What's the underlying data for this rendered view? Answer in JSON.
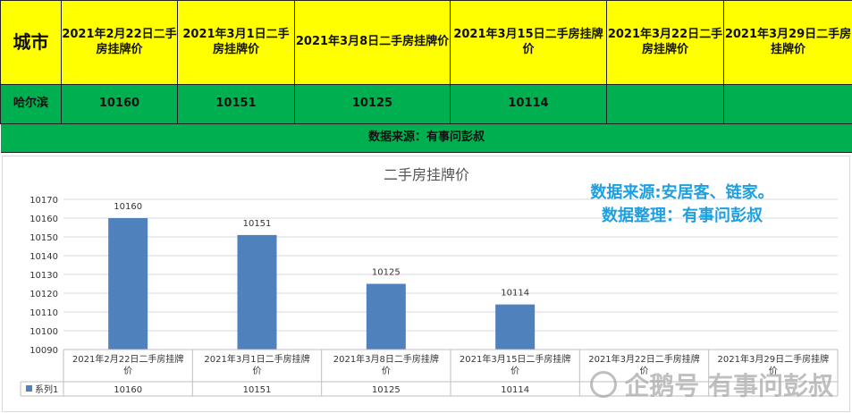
{
  "table": {
    "header_city": "城市",
    "dates": [
      "2021年2月22日二手房挂牌价",
      "2021年3月1日二手房挂牌价",
      "2021年3月8日二手房挂牌价",
      "2021年3月15日二手房挂牌价",
      "2021年3月22日二手房挂牌价",
      "2021年3月29日二手房挂牌价"
    ],
    "city": "哈尔滨",
    "values": [
      "10160",
      "10151",
      "10125",
      "10114",
      "",
      ""
    ],
    "source": "数据来源：有事问彭叔"
  },
  "watermark": {
    "line1": "数据来源:安居客、链家。",
    "line2": "数据整理：有事问彭叔",
    "footer": "企鹅号 有事问彭叔"
  },
  "colors": {
    "yellow": "#ffff00",
    "green": "#00b050",
    "bar": "#4f81bd",
    "watermark": "#1e9fe0"
  },
  "chart_data": {
    "type": "bar",
    "title": "二手房挂牌价",
    "categories": [
      "2021年2月22日二手房挂牌价",
      "2021年3月1日二手房挂牌价",
      "2021年3月8日二手房挂牌价",
      "2021年3月15日二手房挂牌价",
      "2021年3月22日二手房挂牌价",
      "2021年3月29日二手房挂牌价"
    ],
    "series": [
      {
        "name": "系列1",
        "values": [
          10160,
          10151,
          10125,
          10114,
          null,
          null
        ]
      }
    ],
    "ylim": [
      10090,
      10170
    ],
    "yticks": [
      10090,
      10100,
      10110,
      10120,
      10130,
      10140,
      10150,
      10160,
      10170
    ],
    "grid": true,
    "legend": "data-table-left"
  }
}
